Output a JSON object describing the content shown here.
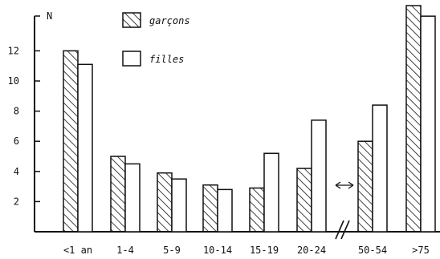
{
  "chart_data": {
    "type": "bar",
    "ylabel": "N",
    "ylim": [
      0,
      15
    ],
    "yticks": [
      "2",
      "4",
      "6",
      "8",
      "10",
      "12"
    ],
    "grid": false,
    "legend_position": "top-center",
    "axis_break_between": [
      "20-24",
      "50-54"
    ],
    "categories": [
      "<1 an",
      "1-4",
      "5-9",
      "10-14",
      "15-19",
      "20-24",
      "50-54",
      ">75"
    ],
    "series": [
      {
        "name": "garçons",
        "pattern": "hatched",
        "values": [
          12.0,
          5.0,
          3.9,
          3.1,
          2.9,
          4.2,
          6.0,
          15.0
        ]
      },
      {
        "name": "filles",
        "pattern": "empty",
        "values": [
          11.1,
          4.5,
          3.5,
          2.8,
          5.2,
          7.4,
          8.4,
          14.3
        ]
      }
    ]
  }
}
